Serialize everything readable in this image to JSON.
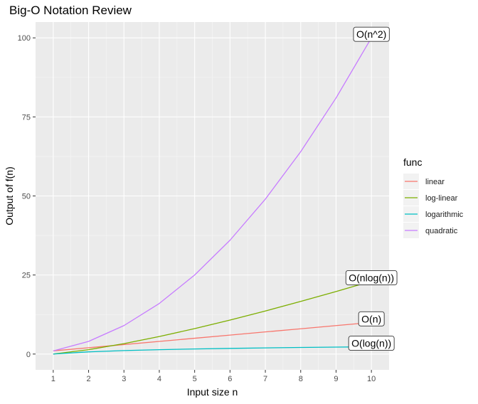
{
  "chart_data": {
    "type": "line",
    "title": "Big-O Notation Review",
    "xlabel": "Input size n",
    "ylabel": "Output of f(n)",
    "x": [
      1,
      2,
      3,
      4,
      5,
      6,
      7,
      8,
      9,
      10
    ],
    "xticks": [
      1,
      2,
      3,
      4,
      5,
      6,
      7,
      8,
      9,
      10
    ],
    "yticks": [
      0,
      25,
      50,
      75,
      100
    ],
    "xlim": [
      0.5,
      10.5
    ],
    "ylim": [
      -5,
      105
    ],
    "grid": true,
    "legend": {
      "title": "func",
      "placement": "right"
    },
    "series": [
      {
        "name": "linear",
        "color": "#F8766D",
        "values": [
          1,
          2,
          3,
          4,
          5,
          6,
          7,
          8,
          9,
          10
        ],
        "annotation": "O(n)"
      },
      {
        "name": "log-linear",
        "color": "#7CAE00",
        "values": [
          0,
          1.39,
          3.3,
          5.55,
          8.05,
          10.75,
          13.62,
          16.64,
          19.78,
          23.03
        ],
        "annotation": "O(nlog(n))"
      },
      {
        "name": "logarithmic",
        "color": "#00BFC4",
        "values": [
          0,
          0.69,
          1.1,
          1.39,
          1.61,
          1.79,
          1.95,
          2.08,
          2.2,
          2.3
        ],
        "annotation": "O(log(n))"
      },
      {
        "name": "quadratic",
        "color": "#C77CFF",
        "values": [
          1,
          4,
          9,
          16,
          25,
          36,
          49,
          64,
          81,
          100
        ],
        "annotation": "O(n^2)"
      }
    ]
  }
}
